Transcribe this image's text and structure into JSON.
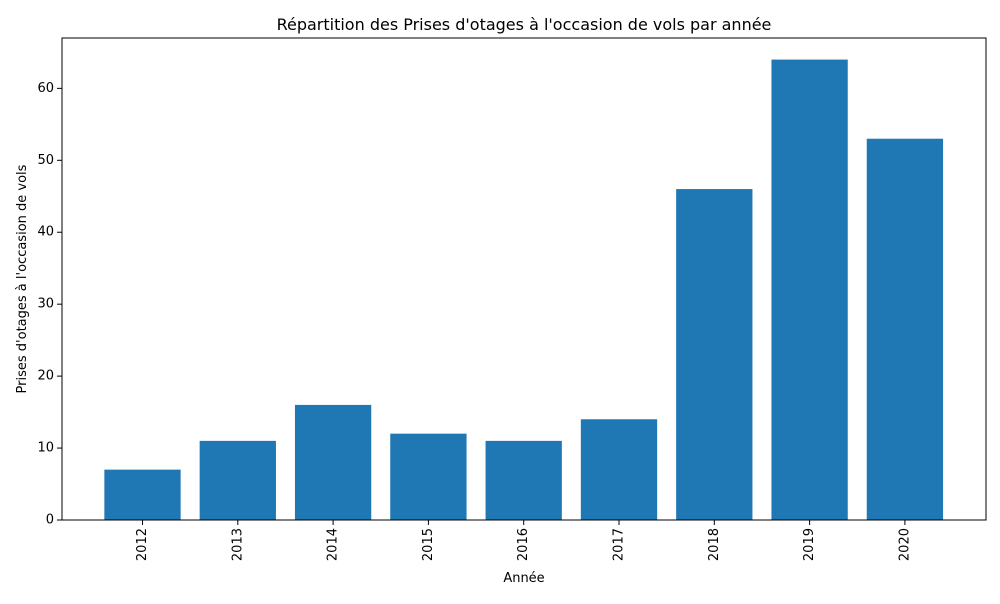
{
  "chart_data": {
    "type": "bar",
    "title": "Répartition des Prises d'otages à l'occasion de vols par année",
    "xlabel": "Année",
    "ylabel": "Prises d'otages à l'occasion de vols",
    "categories": [
      "2012",
      "2013",
      "2014",
      "2015",
      "2016",
      "2017",
      "2018",
      "2019",
      "2020"
    ],
    "values": [
      7,
      11,
      16,
      12,
      11,
      14,
      46,
      64,
      53
    ],
    "ylim": [
      0,
      67
    ],
    "yticks": [
      0,
      10,
      20,
      30,
      40,
      50,
      60
    ],
    "ytick_labels": [
      "0",
      "10",
      "20",
      "30",
      "40",
      "50",
      "60"
    ],
    "bar_color": "#1f77b4",
    "grid": false,
    "legend": "none"
  }
}
